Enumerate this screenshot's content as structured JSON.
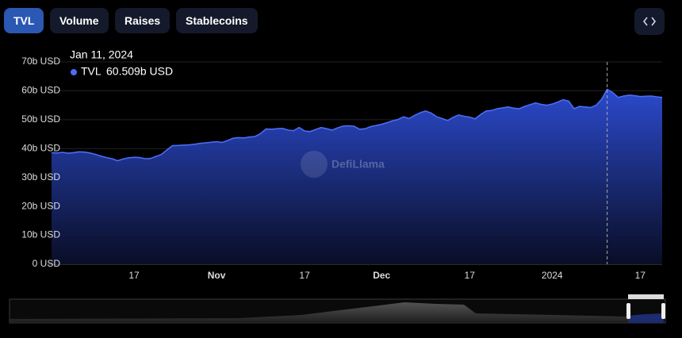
{
  "tabs": [
    "TVL",
    "Volume",
    "Raises",
    "Stablecoins"
  ],
  "chart_data": {
    "type": "area",
    "watermark": "DefiLlama",
    "tooltip": {
      "date": "Jan 11, 2024",
      "series": "TVL",
      "value_label": "60.509b USD"
    },
    "categories": [
      null,
      null,
      null,
      null,
      null,
      null,
      null,
      null,
      null,
      null,
      null,
      null,
      null,
      null,
      null,
      "17",
      null,
      null,
      null,
      null,
      null,
      null,
      null,
      null,
      null,
      null,
      null,
      null,
      null,
      null,
      "Nov",
      null,
      null,
      null,
      null,
      null,
      null,
      null,
      null,
      null,
      null,
      null,
      null,
      null,
      null,
      null,
      "17",
      null,
      null,
      null,
      null,
      null,
      null,
      null,
      null,
      null,
      null,
      null,
      null,
      null,
      "Dec",
      null,
      null,
      null,
      null,
      null,
      null,
      null,
      null,
      null,
      null,
      null,
      null,
      null,
      null,
      null,
      "17",
      null,
      null,
      null,
      null,
      null,
      null,
      null,
      null,
      null,
      null,
      null,
      null,
      null,
      null,
      "2024",
      null,
      null,
      null,
      null,
      null,
      null,
      null,
      null,
      null,
      null,
      null,
      null,
      null,
      null,
      null,
      "17",
      null,
      null,
      null,
      null
    ],
    "series": [
      {
        "name": "TVL",
        "color": "#4a6cf7",
        "values": [
          38.6,
          38.5,
          38.7,
          38.4,
          38.6,
          38.9,
          38.8,
          38.5,
          38.0,
          37.4,
          36.9,
          36.5,
          35.8,
          36.4,
          36.8,
          37.0,
          36.9,
          36.5,
          36.6,
          37.3,
          38.0,
          39.6,
          41.0,
          41.1,
          41.2,
          41.3,
          41.5,
          41.8,
          42.0,
          42.2,
          42.4,
          42.1,
          42.8,
          43.6,
          43.8,
          43.7,
          44.0,
          44.2,
          45.2,
          46.8,
          46.7,
          46.9,
          47.0,
          46.4,
          46.2,
          47.3,
          46.1,
          45.9,
          46.6,
          47.3,
          46.9,
          46.4,
          47.2,
          47.8,
          47.9,
          47.7,
          46.7,
          46.9,
          47.6,
          48.0,
          48.4,
          49.0,
          49.6,
          50.1,
          51.0,
          50.4,
          51.5,
          52.4,
          53.0,
          52.3,
          51.0,
          50.4,
          49.7,
          50.8,
          51.6,
          51.2,
          50.9,
          50.3,
          51.8,
          53.0,
          53.2,
          53.8,
          54.1,
          54.4,
          54.0,
          53.8,
          54.6,
          55.2,
          55.8,
          55.3,
          55.0,
          55.4,
          56.1,
          56.9,
          56.4,
          53.8,
          54.6,
          54.4,
          54.2,
          55.0,
          57.1,
          60.509,
          59.4,
          57.7,
          58.2,
          58.5,
          58.3,
          58.0,
          58.1,
          58.2,
          57.9,
          57.7
        ]
      }
    ],
    "ylim": [
      0,
      70
    ],
    "yticks": [
      {
        "value": 0,
        "label": "0 USD"
      },
      {
        "value": 10,
        "label": "10b USD"
      },
      {
        "value": 20,
        "label": "20b USD"
      },
      {
        "value": 30,
        "label": "30b USD"
      },
      {
        "value": 40,
        "label": "40b USD"
      },
      {
        "value": 50,
        "label": "50b USD"
      },
      {
        "value": 60,
        "label": "60b USD"
      },
      {
        "value": 70,
        "label": "70b USD"
      }
    ],
    "grid": true
  }
}
